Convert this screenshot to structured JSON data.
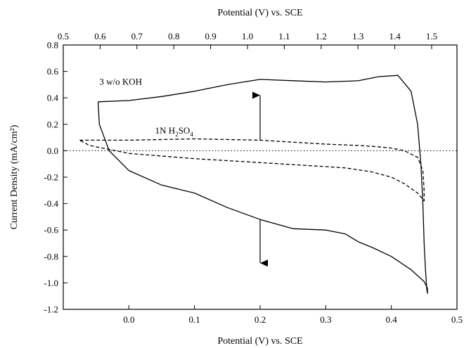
{
  "chart_data": {
    "type": "line",
    "xlabel": "Potential (V) vs. SCE",
    "xlabel_top": "Potential (V) vs. SCE",
    "ylabel": "Current Density (mA/cm²)",
    "xlim": [
      -0.1,
      0.5
    ],
    "ylim": [
      -1.2,
      0.8
    ],
    "x_ticks": [
      0.0,
      0.1,
      0.2,
      0.3,
      0.4,
      0.5
    ],
    "x_tick_labels": [
      "0.0",
      "0.1",
      "0.2",
      "0.3",
      "0.4",
      "0.5"
    ],
    "top_axis_ticks": [
      0.5,
      0.6,
      0.7,
      0.8,
      0.9,
      1.0,
      1.1,
      1.2,
      1.3,
      1.4,
      1.5
    ],
    "top_axis_tick_labels": [
      "0.5",
      "0.6",
      "0.7",
      "0.8",
      "0.9",
      "1.0",
      "1.1",
      "1.2",
      "1.3",
      "1.4",
      "1.5"
    ],
    "y_ticks": [
      -1.2,
      -1.0,
      -0.8,
      -0.6,
      -0.4,
      -0.2,
      0.0,
      0.2,
      0.4,
      0.6,
      0.8
    ],
    "y_tick_labels": [
      "-1.2",
      "-1.0",
      "-0.8",
      "-0.6",
      "-0.4",
      "-0.2",
      "0.0",
      "0.2",
      "0.4",
      "0.6",
      "0.8"
    ],
    "zero_line": true,
    "series": [
      {
        "name": "3 w/o KOH",
        "style": "solid",
        "x": [
          -0.047,
          0.0,
          0.05,
          0.1,
          0.15,
          0.2,
          0.25,
          0.3,
          0.35,
          0.38,
          0.41,
          0.43,
          0.44,
          0.445,
          0.448,
          0.45,
          0.452,
          0.454,
          0.455,
          0.455,
          0.45,
          0.43,
          0.4,
          0.37,
          0.35,
          0.33,
          0.3,
          0.25,
          0.2,
          0.15,
          0.1,
          0.05,
          0.0,
          -0.03,
          -0.045,
          -0.047
        ],
        "y": [
          0.37,
          0.38,
          0.41,
          0.45,
          0.5,
          0.54,
          0.53,
          0.52,
          0.53,
          0.56,
          0.57,
          0.45,
          0.2,
          -0.1,
          -0.4,
          -0.7,
          -0.9,
          -1.05,
          -1.08,
          -1.04,
          -0.99,
          -0.9,
          -0.8,
          -0.73,
          -0.69,
          -0.63,
          -0.6,
          -0.59,
          -0.52,
          -0.43,
          -0.32,
          -0.26,
          -0.15,
          0.0,
          0.2,
          0.37
        ]
      },
      {
        "name": "1N H₂SO₄",
        "style": "dashed",
        "x": [
          -0.075,
          0.0,
          0.1,
          0.2,
          0.3,
          0.35,
          0.38,
          0.4,
          0.42,
          0.44,
          0.448,
          0.45,
          0.45,
          0.44,
          0.42,
          0.4,
          0.37,
          0.33,
          0.3,
          0.2,
          0.1,
          0.0,
          -0.06,
          -0.075
        ],
        "y": [
          0.08,
          0.08,
          0.09,
          0.08,
          0.05,
          0.04,
          0.03,
          0.02,
          0.0,
          -0.05,
          -0.15,
          -0.3,
          -0.38,
          -0.32,
          -0.25,
          -0.2,
          -0.16,
          -0.13,
          -0.12,
          -0.09,
          -0.06,
          -0.02,
          0.04,
          0.08
        ]
      }
    ],
    "labels": [
      {
        "id": "koh",
        "text": "3 w/o KOH",
        "x": -0.045,
        "y": 0.5
      },
      {
        "id": "h2so4",
        "prefix": "1N H",
        "sub1": "2",
        "mid": "SO",
        "sub2": "4",
        "x": 0.04,
        "y": 0.13
      }
    ],
    "arrows": [
      {
        "x": 0.2,
        "from": 0.08,
        "to": 0.42
      },
      {
        "x": 0.2,
        "from": -0.52,
        "to": -0.85
      }
    ]
  }
}
